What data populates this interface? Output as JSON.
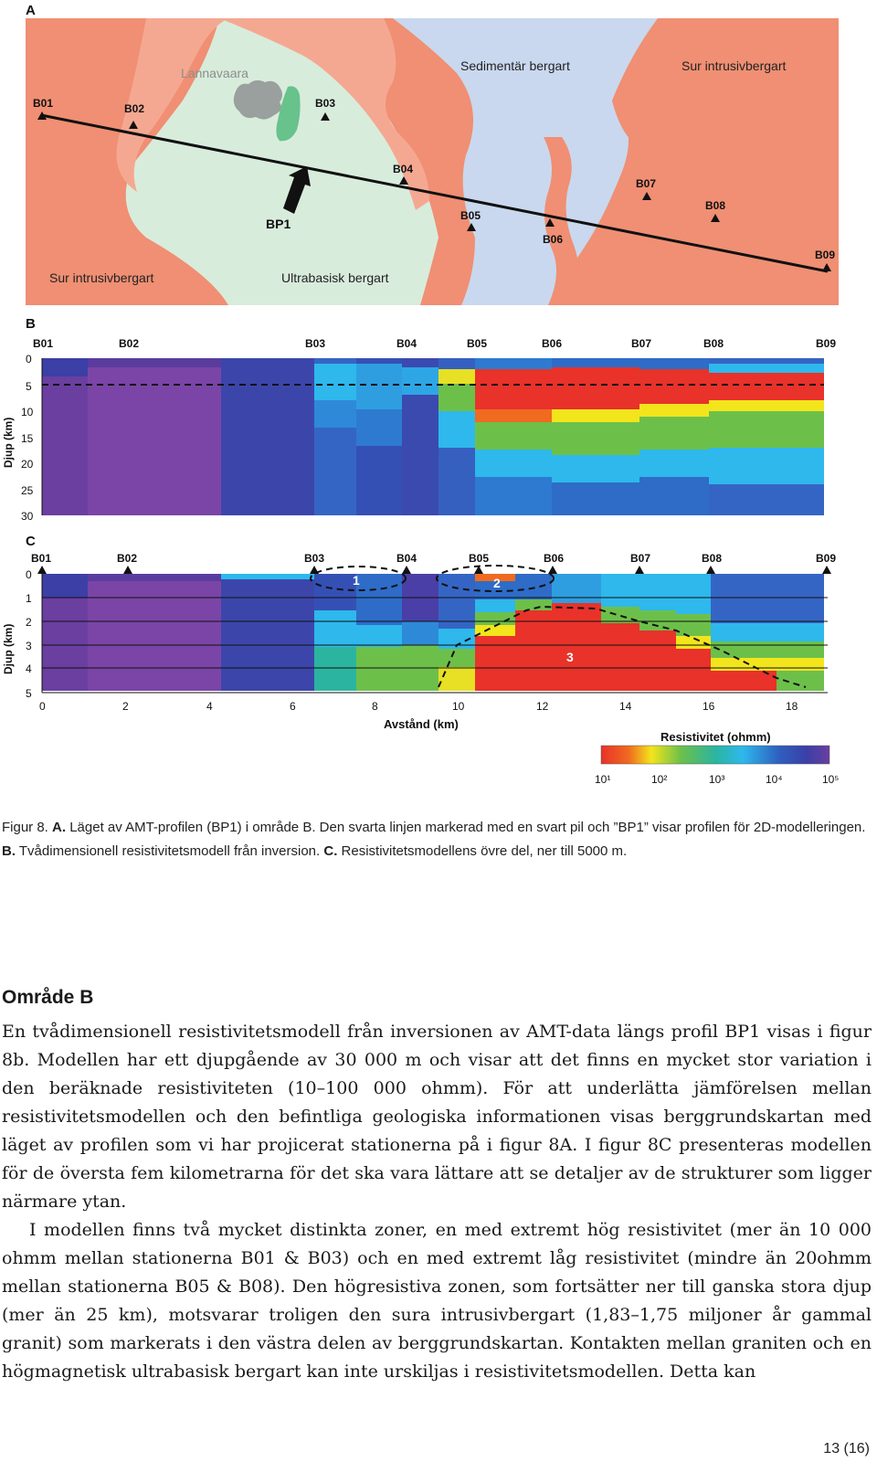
{
  "panel_a": {
    "letter": "A",
    "map_labels": {
      "lannavaara": "Lannavaara",
      "sedimentar": "Sedimentär bergart",
      "sur_top": "Sur intrusivbergart",
      "sur_bottom": "Sur intrusivbergart",
      "ultrabasisk": "Ultrabasisk bergart",
      "profile": "BP1"
    },
    "stations": [
      {
        "label": "B01"
      },
      {
        "label": "B02"
      },
      {
        "label": "B03"
      },
      {
        "label": "B04"
      },
      {
        "label": "B05"
      },
      {
        "label": "B06"
      },
      {
        "label": "B07"
      },
      {
        "label": "B08"
      },
      {
        "label": "B09"
      }
    ],
    "colors": {
      "acid_intrusive": "#f08f73",
      "ultrabasic_light": "#f5a891",
      "ultrabasic": "#d8ecdc",
      "sedimentary": "#c9d8ee",
      "gray_unit": "#9aa09d",
      "green_unit": "#67c28b"
    }
  },
  "panel_b": {
    "letter": "B",
    "ylabel": "Djup (km)",
    "yticks": [
      "0",
      "5",
      "10",
      "15",
      "20",
      "25",
      "30"
    ],
    "stations": [
      "B01",
      "B02",
      "B03",
      "B04",
      "B05",
      "B06",
      "B07",
      "B08",
      "B09"
    ]
  },
  "panel_c": {
    "letter": "C",
    "ylabel": "Djup (km)",
    "yticks": [
      "0",
      "1",
      "2",
      "3",
      "4",
      "5"
    ],
    "xticks": [
      "0",
      "2",
      "4",
      "6",
      "8",
      "10",
      "12",
      "14",
      "16",
      "18"
    ],
    "xlabel": "Avstånd (km)",
    "stations": [
      "B01",
      "B02",
      "B03",
      "B04",
      "B05",
      "B06",
      "B07",
      "B08",
      "B09"
    ],
    "zones": [
      "1",
      "2",
      "3"
    ]
  },
  "chart_data": {
    "type": "heatmap",
    "title": "",
    "xlabel": "Avstånd (km)",
    "ylabel": "Djup (km)",
    "xlim": [
      0,
      19
    ],
    "ylim_b": [
      0,
      30
    ],
    "ylim_c": [
      0,
      5
    ],
    "station_distances_km": [
      0,
      2,
      6.5,
      8.7,
      10.4,
      12.2,
      14.3,
      16,
      18.8
    ],
    "colorbar": {
      "title": "Resistivitet (ohmm)",
      "scale": "log",
      "range": [
        10,
        100000
      ],
      "tick_labels": [
        "10¹",
        "10²",
        "10³",
        "10⁴",
        "10⁵"
      ]
    },
    "description_zones": [
      {
        "label": "1",
        "x_range_km": [
          6.5,
          8.7
        ],
        "depth_km": [
          0,
          0.6
        ]
      },
      {
        "label": "2",
        "x_range_km": [
          9.8,
          12.4
        ],
        "depth_km": [
          0,
          0.6
        ]
      },
      {
        "label": "3",
        "x_range_km": [
          10,
          18.8
        ],
        "depth_km": [
          1.6,
          5
        ]
      }
    ]
  },
  "caption": {
    "prefix": "Figur 8. ",
    "a_label": "A.",
    "a_text": " Läget av AMT-profilen (BP1) i område B. Den svarta linjen markerad med en svart pil och ”BP1” visar profilen för 2D-modelleringen. ",
    "b_label": "B.",
    "b_text": " Tvådimensionell resistivitetsmodell från inversion. ",
    "c_label": "C.",
    "c_text": " Resistivitetsmodellens övre del, ner till 5000 m."
  },
  "section": {
    "title": "Område B",
    "paragraph1": "En tvådimensionell resistivitetsmodell från inversionen av AMT-data längs profil BP1 visas i figur 8b. Modellen har ett djupgående av 30 000 m och visar att det finns en mycket stor variation i den beräknade resistiviteten (10–100 000 ohmm). För att underlätta jämförelsen mellan resistivitetsmodellen och den befintliga geologiska informationen visas berggrundskartan med läget av profilen som vi har projicerat stationerna på i figur 8A. I figur 8C presenteras modellen för de översta fem kilometrarna för det ska vara lättare att se detaljer av de strukturer som ligger närmare ytan.",
    "paragraph2": "I modellen finns två mycket distinkta zoner, en med extremt hög resistivitet (mer än 10 000 ohmm mellan stationerna B01 & B03) och en med extremt låg resistivitet (mindre än 20ohmm mellan stationerna B05 & B08). Den högresistiva zonen, som fortsätter ner till ganska stora djup (mer än 25 km), motsvarar troligen den sura intrusivbergart (1,83–1,75 miljoner år gammal granit) som markerats i den västra delen av berggrundskartan. Kontakten mellan graniten och en högmagnetisk ultrabasisk bergart kan inte urskiljas i resistivitetsmodellen. Detta kan"
  },
  "page_number": "13 (16)"
}
